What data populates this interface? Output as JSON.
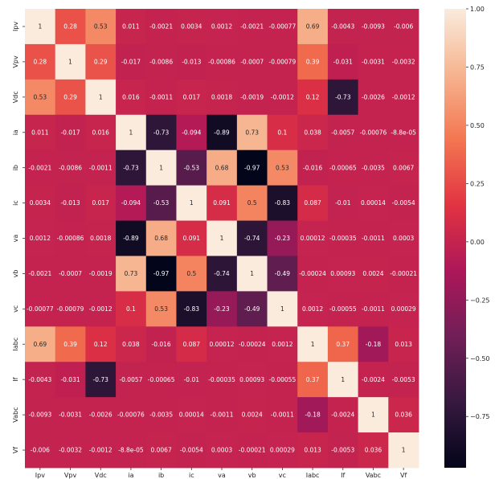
{
  "chart_data": {
    "type": "heatmap",
    "labels": [
      "Ipv",
      "Vpv",
      "Vdc",
      "ia",
      "ib",
      "ic",
      "va",
      "vb",
      "vc",
      "Iabc",
      "If",
      "Vabc",
      "Vf"
    ],
    "x_labels": [
      "Ipv",
      "Vpv",
      "Vdc",
      "ia",
      "ib",
      "ic",
      "va",
      "vb",
      "vc",
      "Iabc",
      "If",
      "Vabc",
      "Vf"
    ],
    "y_labels": [
      "Ipv",
      "Vpv",
      "Vdc",
      "ia",
      "ib",
      "ic",
      "va",
      "vb",
      "vc",
      "Iabc",
      "If",
      "Vabc",
      "Vf"
    ],
    "values": [
      [
        1,
        0.28,
        0.53,
        0.011,
        -0.0021,
        0.0034,
        0.0012,
        -0.0021,
        -0.00077,
        0.69,
        -0.0043,
        -0.0093,
        -0.006
      ],
      [
        0.28,
        1,
        0.29,
        -0.017,
        -0.0086,
        -0.013,
        -0.00086,
        -0.0007,
        -0.00079,
        0.39,
        -0.031,
        -0.0031,
        -0.0032
      ],
      [
        0.53,
        0.29,
        1,
        0.016,
        -0.0011,
        0.017,
        0.0018,
        -0.0019,
        -0.0012,
        0.12,
        -0.73,
        -0.0026,
        -0.0012
      ],
      [
        0.011,
        -0.017,
        0.016,
        1,
        -0.73,
        -0.094,
        -0.89,
        0.73,
        0.1,
        0.038,
        -0.0057,
        -0.00076,
        -8.8e-05
      ],
      [
        -0.0021,
        -0.0086,
        -0.0011,
        -0.73,
        1,
        -0.53,
        0.68,
        -0.97,
        0.53,
        -0.016,
        -0.00065,
        -0.0035,
        0.0067
      ],
      [
        0.0034,
        -0.013,
        0.017,
        -0.094,
        -0.53,
        1,
        0.091,
        0.5,
        -0.83,
        0.087,
        -0.01,
        0.00014,
        -0.0054
      ],
      [
        0.0012,
        -0.00086,
        0.0018,
        -0.89,
        0.68,
        0.091,
        1,
        -0.74,
        -0.23,
        0.00012,
        -0.00035,
        -0.0011,
        0.0003
      ],
      [
        -0.0021,
        -0.0007,
        -0.0019,
        0.73,
        -0.97,
        0.5,
        -0.74,
        1,
        -0.49,
        -0.00024,
        0.00093,
        0.0024,
        -0.00021
      ],
      [
        -0.00077,
        -0.00079,
        -0.0012,
        0.1,
        0.53,
        -0.83,
        -0.23,
        -0.49,
        1,
        0.0012,
        -0.00055,
        -0.0011,
        0.00029
      ],
      [
        0.69,
        0.39,
        0.12,
        0.038,
        -0.016,
        0.087,
        0.00012,
        -0.00024,
        0.0012,
        1,
        0.37,
        -0.18,
        0.013
      ],
      [
        -0.0043,
        -0.031,
        -0.73,
        -0.0057,
        -0.00065,
        -0.01,
        -0.00035,
        0.00093,
        -0.00055,
        0.37,
        1,
        -0.0024,
        -0.0053
      ],
      [
        -0.0093,
        -0.0031,
        -0.0026,
        -0.00076,
        -0.0035,
        0.00014,
        -0.0011,
        0.0024,
        -0.0011,
        -0.18,
        -0.0024,
        1,
        0.036
      ],
      [
        -0.006,
        -0.0032,
        -0.0012,
        -8.8e-05,
        0.0067,
        -0.0054,
        0.0003,
        -0.00021,
        0.00029,
        0.013,
        -0.0053,
        0.036,
        1
      ]
    ],
    "annotations": [
      [
        "1",
        "0.28",
        "0.53",
        "0.011",
        "-0.0021",
        "0.0034",
        "0.0012",
        "-0.0021",
        "-0.00077",
        "0.69",
        "-0.0043",
        "-0.0093",
        "-0.006"
      ],
      [
        "0.28",
        "1",
        "0.29",
        "-0.017",
        "-0.0086",
        "-0.013",
        "-0.00086",
        "-0.0007",
        "-0.00079",
        "0.39",
        "-0.031",
        "-0.0031",
        "-0.0032"
      ],
      [
        "0.53",
        "0.29",
        "1",
        "0.016",
        "-0.0011",
        "0.017",
        "0.0018",
        "-0.0019",
        "-0.0012",
        "0.12",
        "-0.73",
        "-0.0026",
        "-0.0012"
      ],
      [
        "0.011",
        "-0.017",
        "0.016",
        "1",
        "-0.73",
        "-0.094",
        "-0.89",
        "0.73",
        "0.1",
        "0.038",
        "-0.0057",
        "-0.00076",
        "-8.8e-05"
      ],
      [
        "-0.0021",
        "-0.0086",
        "-0.0011",
        "-0.73",
        "1",
        "-0.53",
        "0.68",
        "-0.97",
        "0.53",
        "-0.016",
        "-0.00065",
        "-0.0035",
        "0.0067"
      ],
      [
        "0.0034",
        "-0.013",
        "0.017",
        "-0.094",
        "-0.53",
        "1",
        "0.091",
        "0.5",
        "-0.83",
        "0.087",
        "-0.01",
        "0.00014",
        "-0.0054"
      ],
      [
        "0.0012",
        "-0.00086",
        "0.0018",
        "-0.89",
        "0.68",
        "0.091",
        "1",
        "-0.74",
        "-0.23",
        "0.00012",
        "-0.00035",
        "-0.0011",
        "0.0003"
      ],
      [
        "-0.0021",
        "-0.0007",
        "-0.0019",
        "0.73",
        "-0.97",
        "0.5",
        "-0.74",
        "1",
        "-0.49",
        "-0.00024",
        "0.00093",
        "0.0024",
        "-0.00021"
      ],
      [
        "-0.00077",
        "-0.00079",
        "-0.0012",
        "0.1",
        "0.53",
        "-0.83",
        "-0.23",
        "-0.49",
        "1",
        "0.0012",
        "-0.00055",
        "-0.0011",
        "0.00029"
      ],
      [
        "0.69",
        "0.39",
        "0.12",
        "0.038",
        "-0.016",
        "0.087",
        "0.00012",
        "-0.00024",
        "0.0012",
        "1",
        "0.37",
        "-0.18",
        "0.013"
      ],
      [
        "-0.0043",
        "-0.031",
        "-0.73",
        "-0.0057",
        "-0.00065",
        "-0.01",
        "-0.00035",
        "0.00093",
        "-0.00055",
        "0.37",
        "1",
        "-0.0024",
        "-0.0053"
      ],
      [
        "-0.0093",
        "-0.0031",
        "-0.0026",
        "-0.00076",
        "-0.0035",
        "0.00014",
        "-0.0011",
        "0.0024",
        "-0.0011",
        "-0.18",
        "-0.0024",
        "1",
        "0.036"
      ],
      [
        "-0.006",
        "-0.0032",
        "-0.0012",
        "-8.8e-05",
        "0.0067",
        "-0.0054",
        "0.0003",
        "-0.00021",
        "0.00029",
        "0.013",
        "-0.0053",
        "0.036",
        "1"
      ]
    ],
    "colorbar": {
      "min": -0.97,
      "max": 1.0,
      "ticks": [
        1.0,
        0.75,
        0.5,
        0.25,
        0.0,
        -0.25,
        -0.5,
        -0.75
      ],
      "tick_labels": [
        "1.00",
        "0.75",
        "0.50",
        "0.25",
        "0.00",
        "−0.25",
        "−0.50",
        "−0.75"
      ],
      "position": "right"
    },
    "colormap": "rocket",
    "colormap_stops": [
      "#03051a",
      "#36193e",
      "#701f57",
      "#ad1759",
      "#e13342",
      "#f37651",
      "#f6b48f",
      "#faebdd"
    ],
    "text_color_dark": "#262626",
    "text_color_light": "#ffffff",
    "grid": false,
    "title": "",
    "xlabel": "",
    "ylabel": ""
  }
}
